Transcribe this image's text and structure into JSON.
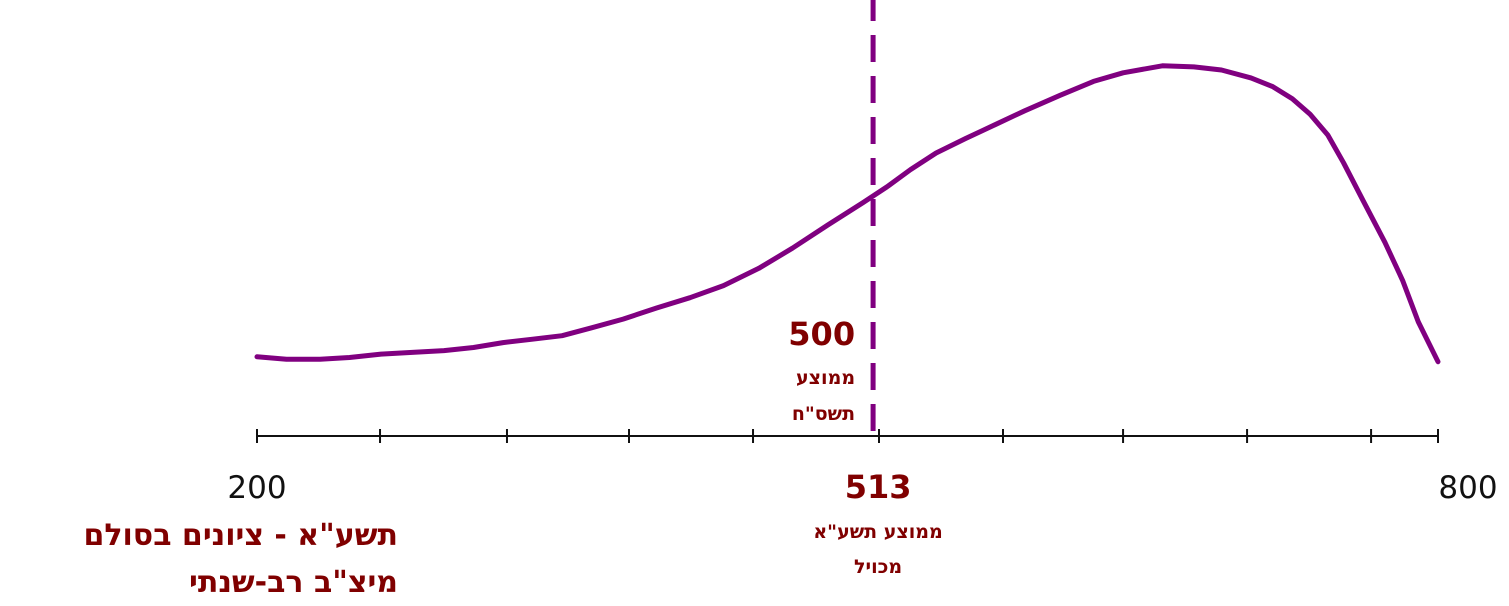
{
  "chart_data": {
    "type": "line",
    "title_lines": [
      "תשע\"א - ציונים בסולם",
      "מיצ\"ב רב-שנתי"
    ],
    "xlim": [
      200,
      800
    ],
    "x_tick_labels": [
      {
        "value": 200,
        "label": "200"
      },
      {
        "value": 800,
        "label": "800"
      }
    ],
    "x_tick_marks": [
      200,
      262.5,
      327,
      389,
      452,
      516,
      579,
      640,
      703,
      766,
      800
    ],
    "series": [
      {
        "color": "#800080",
        "points": [
          [
            200,
            0.119
          ],
          [
            215,
            0.112
          ],
          [
            232,
            0.112
          ],
          [
            247,
            0.117
          ],
          [
            263,
            0.127
          ],
          [
            280,
            0.132
          ],
          [
            295,
            0.137
          ],
          [
            310,
            0.146
          ],
          [
            325,
            0.16
          ],
          [
            340,
            0.17
          ],
          [
            355,
            0.18
          ],
          [
            370,
            0.203
          ],
          [
            386,
            0.228
          ],
          [
            403,
            0.26
          ],
          [
            420,
            0.29
          ],
          [
            437,
            0.325
          ],
          [
            455,
            0.375
          ],
          [
            472,
            0.433
          ],
          [
            490,
            0.5
          ],
          [
            508,
            0.565
          ],
          [
            520,
            0.61
          ],
          [
            532,
            0.66
          ],
          [
            545,
            0.708
          ],
          [
            560,
            0.75
          ],
          [
            575,
            0.79
          ],
          [
            590,
            0.83
          ],
          [
            608,
            0.875
          ],
          [
            625,
            0.915
          ],
          [
            640,
            0.94
          ],
          [
            660,
            0.96
          ],
          [
            676,
            0.957
          ],
          [
            690,
            0.948
          ],
          [
            705,
            0.925
          ],
          [
            716,
            0.9
          ],
          [
            726,
            0.865
          ],
          [
            735,
            0.82
          ],
          [
            744,
            0.76
          ],
          [
            752,
            0.68
          ],
          [
            762,
            0.57
          ],
          [
            773,
            0.45
          ],
          [
            782,
            0.34
          ],
          [
            790,
            0.22
          ],
          [
            800,
            0.105
          ]
        ]
      }
    ],
    "reference_lines": [
      {
        "x": 513,
        "style": "dashed",
        "color": "#800080",
        "label_value": "500",
        "label_text": [
          "ממוצע",
          "תשס\"ח"
        ]
      }
    ],
    "annotations": [
      {
        "x": 513,
        "label_value": "513",
        "label_text": [
          "ממוצע תשע\"א",
          "מכויל"
        ]
      }
    ],
    "grid": false,
    "y_axis_visible": false
  }
}
